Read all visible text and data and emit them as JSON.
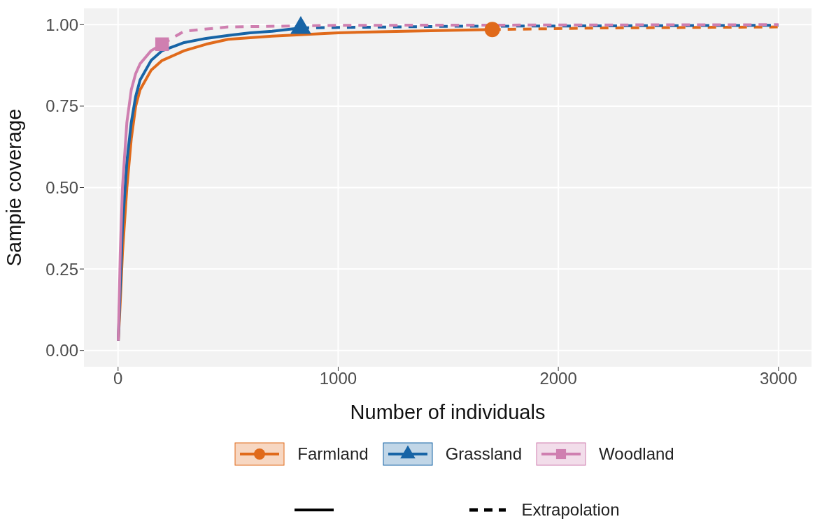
{
  "chart_data": {
    "type": "line",
    "xlabel": "Number of individuals",
    "ylabel": "Sampie coverage",
    "xlim": [
      -155,
      3150
    ],
    "ylim": [
      -0.05,
      1.05
    ],
    "xticks": [
      0,
      1000,
      2000,
      3000
    ],
    "yticks": [
      {
        "value": 0,
        "label": "0.00"
      },
      {
        "value": 0.25,
        "label": "0.25"
      },
      {
        "value": 0.5,
        "label": "0.50"
      },
      {
        "value": 0.75,
        "label": "0.75"
      },
      {
        "value": 1,
        "label": "1.00"
      }
    ],
    "grid": true,
    "legend": "bottom",
    "annotations": [
      "Extrapolation"
    ],
    "series": [
      {
        "name": "Farmland",
        "color": "#e06a1b",
        "line_style": "solid",
        "x": [
          1,
          10,
          20,
          40,
          60,
          80,
          100,
          150,
          200,
          300,
          400,
          500,
          700,
          1000,
          1300,
          1700
        ],
        "values": [
          0.03,
          0.15,
          0.3,
          0.5,
          0.65,
          0.75,
          0.8,
          0.86,
          0.89,
          0.92,
          0.94,
          0.955,
          0.965,
          0.975,
          0.98,
          0.985
        ]
      },
      {
        "name": "Grassland",
        "color": "#1764a6",
        "line_style": "solid",
        "x": [
          1,
          10,
          20,
          40,
          60,
          80,
          100,
          150,
          200,
          300,
          400,
          500,
          600,
          700,
          830
        ],
        "values": [
          0.03,
          0.2,
          0.38,
          0.58,
          0.7,
          0.78,
          0.83,
          0.89,
          0.92,
          0.945,
          0.958,
          0.967,
          0.975,
          0.98,
          0.99
        ]
      },
      {
        "name": "Woodland",
        "color": "#cf7fb0",
        "line_style": "solid",
        "x": [
          1,
          10,
          20,
          40,
          60,
          80,
          100,
          150,
          200
        ],
        "values": [
          0.03,
          0.3,
          0.5,
          0.7,
          0.8,
          0.85,
          0.88,
          0.92,
          0.94
        ]
      },
      {
        "color": "#e06a1b",
        "line_style": "dashed",
        "x": [
          1700,
          2200,
          3000
        ],
        "values": [
          0.985,
          0.99,
          0.993
        ]
      },
      {
        "color": "#1764a6",
        "line_style": "dashed",
        "x": [
          830,
          1500,
          3000
        ],
        "values": [
          0.99,
          0.995,
          0.998
        ]
      },
      {
        "color": "#cf7fb0",
        "line_style": "dashed",
        "x": [
          200,
          300,
          500,
          1000,
          3000
        ],
        "values": [
          0.94,
          0.98,
          0.993,
          0.998,
          1.0
        ]
      },
      {
        "type": "scatter",
        "color": "#e06a1b",
        "marker": "circle",
        "x": [
          1700
        ],
        "values": [
          0.985
        ]
      },
      {
        "type": "scatter",
        "color": "#1764a6",
        "marker": "triangle",
        "x": [
          830
        ],
        "values": [
          0.99
        ]
      },
      {
        "type": "scatter",
        "color": "#cf7fb0",
        "marker": "square",
        "x": [
          200
        ],
        "values": [
          0.94
        ]
      }
    ]
  }
}
